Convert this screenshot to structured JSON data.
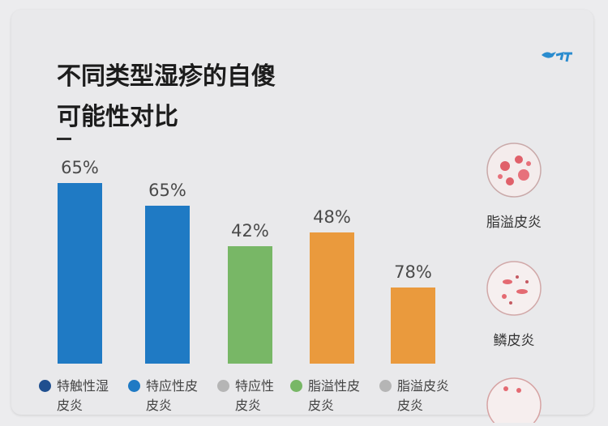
{
  "title": "不同类型湿疹的自愈可能性对比",
  "title_lines": [
    "不同类型湿疹的自傻",
    "可能性对比"
  ],
  "colors": {
    "blue": "#1f7ac4",
    "green": "#78b766",
    "orange": "#ea9a3d",
    "legend_dark": "#1f4f8f",
    "legend_gray": "#b5b5b5"
  },
  "chart_data": {
    "type": "bar",
    "categories": [
      "特触性湿皮炎",
      "特应性皮皮炎",
      "特应性皮炎",
      "脂溢性皮皮炎",
      "脂溢皮炎皮炎"
    ],
    "values": [
      65,
      65,
      42,
      48,
      78
    ],
    "value_labels": [
      "65%",
      "65%",
      "42%",
      "48%",
      "78%"
    ],
    "bar_heights_ratio_note": "",
    "bar_colors": [
      "#1f7ac4",
      "#1f7ac4",
      "#78b766",
      "#ea9a3d",
      "#ea9a3d"
    ]
  },
  "legend": [
    {
      "label": "特触性湿",
      "label2": "皮炎",
      "color": "#1f4f8f"
    },
    {
      "label": "特应性皮",
      "label2": "皮炎",
      "color": "#1f7ac4"
    },
    {
      "label": "特应性",
      "label2": "皮炎",
      "color": "#b5b5b5"
    },
    {
      "label": "脂溢性皮",
      "label2": "皮炎",
      "color": "#78b766"
    },
    {
      "label": "脂溢皮炎",
      "label2": "皮炎",
      "color": "#b5b5b5"
    }
  ],
  "side_panel": [
    {
      "label": "脂溢皮炎",
      "icon": "skin-lesion-icon"
    },
    {
      "label": "鳞皮炎",
      "icon": "skin-lesion-icon"
    },
    {
      "label": "",
      "icon": "skin-lesion-icon"
    }
  ]
}
